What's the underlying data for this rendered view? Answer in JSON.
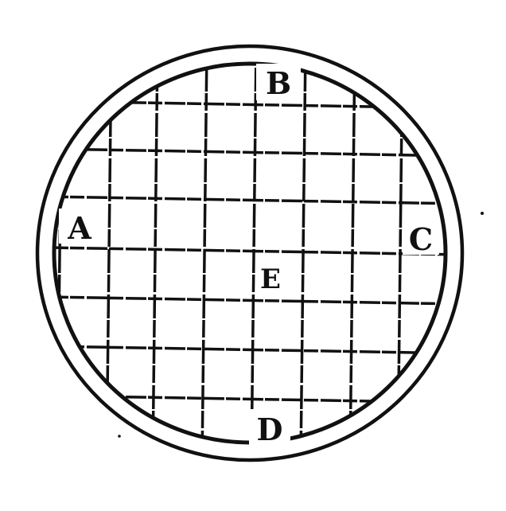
{
  "diagram": {
    "labels": {
      "a": "A",
      "b": "B",
      "c": "C",
      "d": "D",
      "e": "E"
    }
  },
  "colors": {
    "ink": "#111111",
    "background": "#ffffff"
  }
}
